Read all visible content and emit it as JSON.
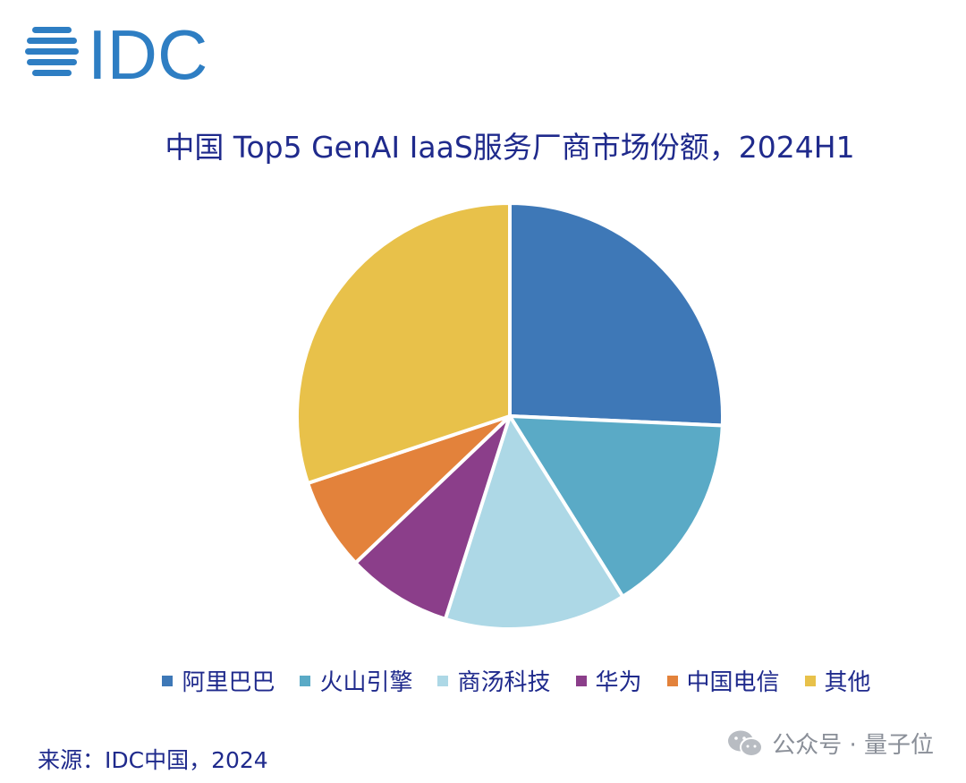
{
  "brand": {
    "logo_text": "IDC",
    "logo_color": "#2e7ec3"
  },
  "chart_data": {
    "type": "pie",
    "title": "中国 Top5 GenAI IaaS服务厂商市场份额，2024H1",
    "legend_position": "bottom",
    "slices": [
      {
        "name": "阿里巴巴",
        "value": 25.7,
        "color": "#3e78b7"
      },
      {
        "name": "火山引擎",
        "value": 15.4,
        "color": "#5aaac6"
      },
      {
        "name": "商汤科技",
        "value": 13.8,
        "color": "#add8e6"
      },
      {
        "name": "华为",
        "value": 8.0,
        "color": "#8b3e8a"
      },
      {
        "name": "中国电信",
        "value": 7.0,
        "color": "#e3823b"
      },
      {
        "name": "其他",
        "value": 30.1,
        "color": "#e8c14a"
      }
    ]
  },
  "source": "来源：IDC中国，2024",
  "watermark": {
    "text": "公众号 · 量子位",
    "icon": "wechat-icon"
  }
}
